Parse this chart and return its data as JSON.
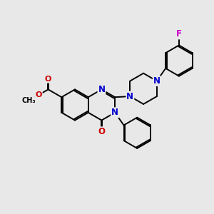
{
  "bg_color": "#e8e8e8",
  "bond_color": "#000000",
  "n_color": "#0000cc",
  "o_color": "#cc0000",
  "f_color": "#cc00cc",
  "bond_width": 1.4,
  "font_size_atom": 8.5,
  "figsize": [
    3.0,
    3.0
  ],
  "dpi": 100,
  "xlim": [
    0,
    10
  ],
  "ylim": [
    0,
    10
  ]
}
